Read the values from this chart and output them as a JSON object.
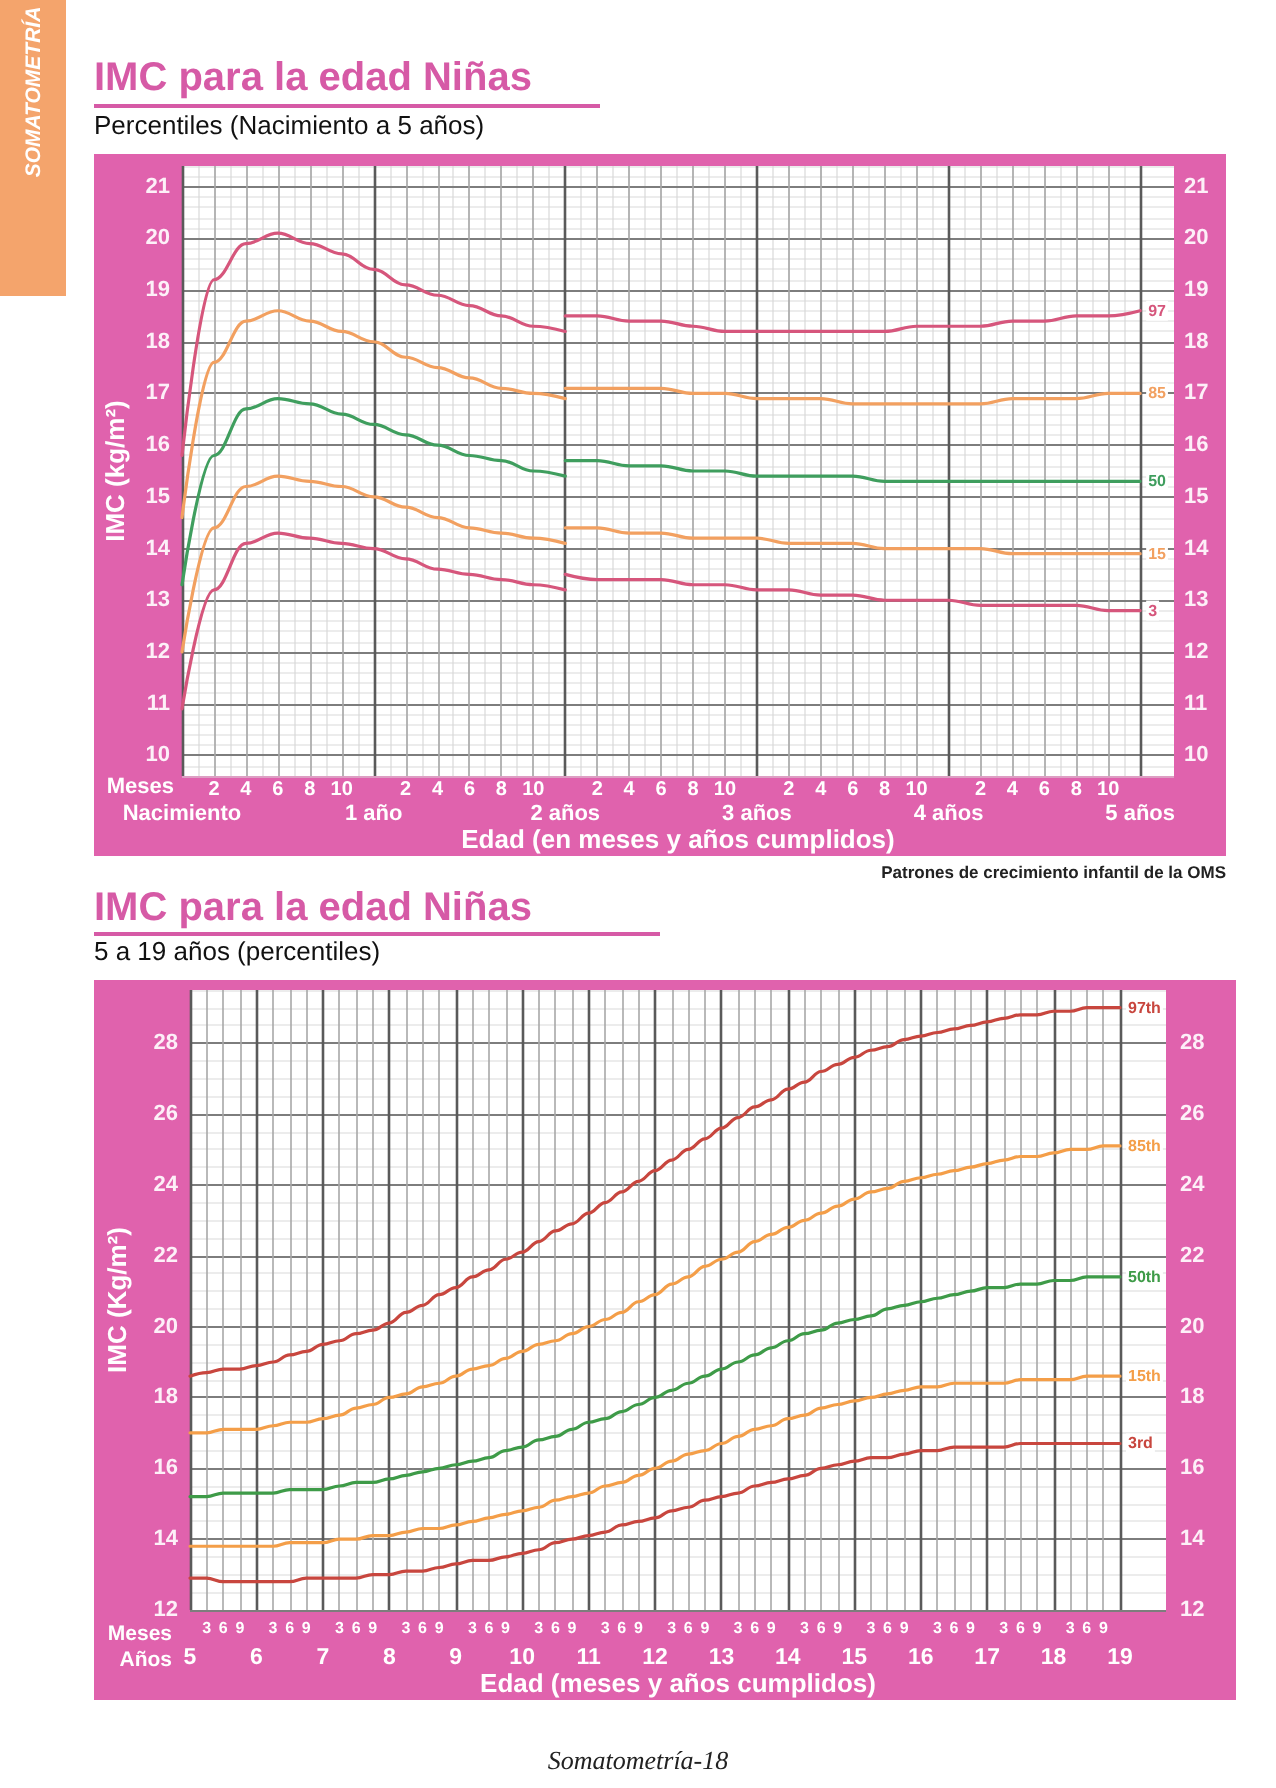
{
  "chart_data": [
    {
      "type": "line",
      "title": "IMC para la edad Niñas",
      "subtitle": "Percentiles (Nacimiento a 5 años)",
      "xlabel": "Edad (en meses y años cumplidos)",
      "ylabel": "IMC (kg/m²)",
      "annotations": [
        "SOMATOMETRÍA",
        "Meses",
        "Patrones de crecimiento infantil de la OMS"
      ],
      "categories": [
        "Nacimiento",
        "2",
        "4",
        "6",
        "8",
        "10",
        "1 año",
        "2",
        "4",
        "6",
        "8",
        "10",
        "2 años",
        "2",
        "4",
        "6",
        "8",
        "10",
        "3 años",
        "2",
        "4",
        "6",
        "8",
        "10",
        "4 años",
        "2",
        "4",
        "6",
        "8",
        "10",
        "5 años"
      ],
      "series": [
        {
          "color": "#d6567c",
          "values": [
            15.8,
            19.2,
            19.9,
            20.1,
            19.9,
            19.7,
            19.4,
            19.1,
            18.9,
            18.7,
            18.5,
            18.3,
            18.2,
            null,
            null,
            null,
            null,
            null,
            null,
            null,
            null,
            null,
            null,
            null,
            null,
            null,
            null,
            null,
            null,
            null,
            null
          ]
        },
        {
          "name": "97",
          "color": "#d6567c",
          "values": [
            null,
            null,
            null,
            null,
            null,
            null,
            null,
            null,
            null,
            null,
            null,
            null,
            18.5,
            18.5,
            18.4,
            18.4,
            18.3,
            18.2,
            18.2,
            18.2,
            18.2,
            18.2,
            18.2,
            18.3,
            18.3,
            18.3,
            18.4,
            18.4,
            18.5,
            18.5,
            18.6
          ]
        },
        {
          "color": "#f2a060",
          "values": [
            14.6,
            17.6,
            18.4,
            18.6,
            18.4,
            18.2,
            18.0,
            17.7,
            17.5,
            17.3,
            17.1,
            17.0,
            16.9,
            null,
            null,
            null,
            null,
            null,
            null,
            null,
            null,
            null,
            null,
            null,
            null,
            null,
            null,
            null,
            null,
            null,
            null
          ]
        },
        {
          "name": "85",
          "color": "#f2a060",
          "values": [
            null,
            null,
            null,
            null,
            null,
            null,
            null,
            null,
            null,
            null,
            null,
            null,
            17.1,
            17.1,
            17.1,
            17.1,
            17.0,
            17.0,
            16.9,
            16.9,
            16.9,
            16.8,
            16.8,
            16.8,
            16.8,
            16.8,
            16.9,
            16.9,
            16.9,
            17.0,
            17.0
          ]
        },
        {
          "color": "#3f9e5e",
          "values": [
            13.3,
            15.8,
            16.7,
            16.9,
            16.8,
            16.6,
            16.4,
            16.2,
            16.0,
            15.8,
            15.7,
            15.5,
            15.4,
            null,
            null,
            null,
            null,
            null,
            null,
            null,
            null,
            null,
            null,
            null,
            null,
            null,
            null,
            null,
            null,
            null,
            null
          ]
        },
        {
          "name": "50",
          "color": "#3f9e5e",
          "values": [
            null,
            null,
            null,
            null,
            null,
            null,
            null,
            null,
            null,
            null,
            null,
            null,
            15.7,
            15.7,
            15.6,
            15.6,
            15.5,
            15.5,
            15.4,
            15.4,
            15.4,
            15.4,
            15.3,
            15.3,
            15.3,
            15.3,
            15.3,
            15.3,
            15.3,
            15.3,
            15.3
          ]
        },
        {
          "color": "#f2a060",
          "values": [
            12.0,
            14.4,
            15.2,
            15.4,
            15.3,
            15.2,
            15.0,
            14.8,
            14.6,
            14.4,
            14.3,
            14.2,
            14.1,
            null,
            null,
            null,
            null,
            null,
            null,
            null,
            null,
            null,
            null,
            null,
            null,
            null,
            null,
            null,
            null,
            null,
            null
          ]
        },
        {
          "name": "15",
          "color": "#f2a060",
          "values": [
            null,
            null,
            null,
            null,
            null,
            null,
            null,
            null,
            null,
            null,
            null,
            null,
            14.4,
            14.4,
            14.3,
            14.3,
            14.2,
            14.2,
            14.2,
            14.1,
            14.1,
            14.1,
            14.0,
            14.0,
            14.0,
            14.0,
            13.9,
            13.9,
            13.9,
            13.9,
            13.9
          ]
        },
        {
          "color": "#d6567c",
          "values": [
            10.9,
            13.2,
            14.1,
            14.3,
            14.2,
            14.1,
            14.0,
            13.8,
            13.6,
            13.5,
            13.4,
            13.3,
            13.2,
            null,
            null,
            null,
            null,
            null,
            null,
            null,
            null,
            null,
            null,
            null,
            null,
            null,
            null,
            null,
            null,
            null,
            null
          ]
        },
        {
          "name": "3",
          "color": "#d6567c",
          "values": [
            null,
            null,
            null,
            null,
            null,
            null,
            null,
            null,
            null,
            null,
            null,
            null,
            13.5,
            13.4,
            13.4,
            13.4,
            13.3,
            13.3,
            13.2,
            13.2,
            13.1,
            13.1,
            13.0,
            13.0,
            13.0,
            12.9,
            12.9,
            12.9,
            12.9,
            12.8,
            12.8
          ]
        }
      ],
      "ylim": [
        9.6,
        21.4
      ],
      "yticks": [
        10,
        11,
        12,
        13,
        14,
        15,
        16,
        17,
        18,
        19,
        20,
        21
      ],
      "y2lim": [
        9.6,
        21.4
      ],
      "y2ticks": [
        10,
        11,
        12,
        13,
        14,
        15,
        16,
        17,
        18,
        19,
        20,
        21
      ],
      "grid": true,
      "marker": "none",
      "line_style": "solid"
    },
    {
      "type": "line",
      "title": "IMC para la edad Niñas",
      "subtitle": "5 a 19 años (percentiles)",
      "xlabel": "Edad (meses y años cumplidos)",
      "ylabel": "IMC (Kg/m²)",
      "annotations": [
        "Meses",
        "Años",
        "Somatometría-18"
      ],
      "categories": [
        "5",
        "3",
        "6",
        "9",
        "6",
        "3",
        "6",
        "9",
        "7",
        "3",
        "6",
        "9",
        "8",
        "3",
        "6",
        "9",
        "9",
        "3",
        "6",
        "9",
        "10",
        "3",
        "6",
        "9",
        "11",
        "3",
        "6",
        "9",
        "12",
        "3",
        "6",
        "9",
        "13",
        "3",
        "6",
        "9",
        "14",
        "3",
        "6",
        "9",
        "15",
        "3",
        "6",
        "9",
        "16",
        "3",
        "6",
        "9",
        "17",
        "3",
        "6",
        "9",
        "18",
        "3",
        "6",
        "9",
        "19"
      ],
      "series": [
        {
          "name": "97th",
          "color": "#c8463e",
          "values": [
            18.6,
            18.7,
            18.8,
            18.8,
            18.9,
            19.0,
            19.2,
            19.3,
            19.5,
            19.6,
            19.8,
            19.9,
            20.1,
            20.4,
            20.6,
            20.9,
            21.1,
            21.4,
            21.6,
            21.9,
            22.1,
            22.4,
            22.7,
            22.9,
            23.2,
            23.5,
            23.8,
            24.1,
            24.4,
            24.7,
            25.0,
            25.3,
            25.6,
            25.9,
            26.2,
            26.4,
            26.7,
            26.9,
            27.2,
            27.4,
            27.6,
            27.8,
            27.9,
            28.1,
            28.2,
            28.3,
            28.4,
            28.5,
            28.6,
            28.7,
            28.8,
            28.8,
            28.9,
            28.9,
            29.0,
            29.0,
            29.0
          ]
        },
        {
          "name": "85th",
          "color": "#f49e48",
          "values": [
            17.0,
            17.0,
            17.1,
            17.1,
            17.1,
            17.2,
            17.3,
            17.3,
            17.4,
            17.5,
            17.7,
            17.8,
            18.0,
            18.1,
            18.3,
            18.4,
            18.6,
            18.8,
            18.9,
            19.1,
            19.3,
            19.5,
            19.6,
            19.8,
            20.0,
            20.2,
            20.4,
            20.7,
            20.9,
            21.2,
            21.4,
            21.7,
            21.9,
            22.1,
            22.4,
            22.6,
            22.8,
            23.0,
            23.2,
            23.4,
            23.6,
            23.8,
            23.9,
            24.1,
            24.2,
            24.3,
            24.4,
            24.5,
            24.6,
            24.7,
            24.8,
            24.8,
            24.9,
            25.0,
            25.0,
            25.1,
            25.1
          ]
        },
        {
          "name": "50th",
          "color": "#3e9b48",
          "values": [
            15.2,
            15.2,
            15.3,
            15.3,
            15.3,
            15.3,
            15.4,
            15.4,
            15.4,
            15.5,
            15.6,
            15.6,
            15.7,
            15.8,
            15.9,
            16.0,
            16.1,
            16.2,
            16.3,
            16.5,
            16.6,
            16.8,
            16.9,
            17.1,
            17.3,
            17.4,
            17.6,
            17.8,
            18.0,
            18.2,
            18.4,
            18.6,
            18.8,
            19.0,
            19.2,
            19.4,
            19.6,
            19.8,
            19.9,
            20.1,
            20.2,
            20.3,
            20.5,
            20.6,
            20.7,
            20.8,
            20.9,
            21.0,
            21.1,
            21.1,
            21.2,
            21.2,
            21.3,
            21.3,
            21.4,
            21.4,
            21.4
          ]
        },
        {
          "name": "15th",
          "color": "#f49e48",
          "values": [
            13.8,
            13.8,
            13.8,
            13.8,
            13.8,
            13.8,
            13.9,
            13.9,
            13.9,
            14.0,
            14.0,
            14.1,
            14.1,
            14.2,
            14.3,
            14.3,
            14.4,
            14.5,
            14.6,
            14.7,
            14.8,
            14.9,
            15.1,
            15.2,
            15.3,
            15.5,
            15.6,
            15.8,
            16.0,
            16.2,
            16.4,
            16.5,
            16.7,
            16.9,
            17.1,
            17.2,
            17.4,
            17.5,
            17.7,
            17.8,
            17.9,
            18.0,
            18.1,
            18.2,
            18.3,
            18.3,
            18.4,
            18.4,
            18.4,
            18.4,
            18.5,
            18.5,
            18.5,
            18.5,
            18.6,
            18.6,
            18.6
          ]
        },
        {
          "name": "3rd",
          "color": "#c8463e",
          "values": [
            12.9,
            12.9,
            12.8,
            12.8,
            12.8,
            12.8,
            12.8,
            12.9,
            12.9,
            12.9,
            12.9,
            13.0,
            13.0,
            13.1,
            13.1,
            13.2,
            13.3,
            13.4,
            13.4,
            13.5,
            13.6,
            13.7,
            13.9,
            14.0,
            14.1,
            14.2,
            14.4,
            14.5,
            14.6,
            14.8,
            14.9,
            15.1,
            15.2,
            15.3,
            15.5,
            15.6,
            15.7,
            15.8,
            16.0,
            16.1,
            16.2,
            16.3,
            16.3,
            16.4,
            16.5,
            16.5,
            16.6,
            16.6,
            16.6,
            16.6,
            16.7,
            16.7,
            16.7,
            16.7,
            16.7,
            16.7,
            16.7
          ]
        }
      ],
      "ylim": [
        12,
        29.5
      ],
      "yticks": [
        12,
        14,
        16,
        18,
        20,
        22,
        24,
        26,
        28
      ],
      "y2lim": [
        12,
        29.5
      ],
      "y2ticks": [
        12,
        14,
        16,
        18,
        20,
        22,
        24,
        26,
        28
      ],
      "grid": true,
      "marker": "none",
      "line_style": "solid"
    }
  ]
}
